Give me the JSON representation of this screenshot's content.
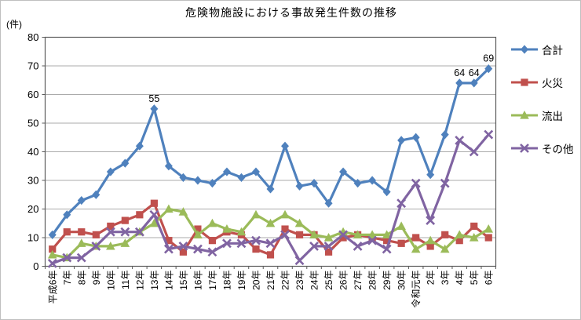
{
  "title": "危険物施設における事故発生件数の推移",
  "y_axis_unit": "(件)",
  "chart_data": {
    "type": "line",
    "title": "危険物施設における事故発生件数の推移",
    "ylabel_unit": "(件)",
    "ylim": [
      0,
      80
    ],
    "ytick_step": 10,
    "grid": true,
    "legend_position": "right",
    "categories": [
      "平成6年",
      "7年",
      "8年",
      "9年",
      "10年",
      "11年",
      "12年",
      "13年",
      "14年",
      "15年",
      "16年",
      "17年",
      "18年",
      "19年",
      "20年",
      "21年",
      "22年",
      "23年",
      "24年",
      "25年",
      "26年",
      "27年",
      "28年",
      "29年",
      "30年",
      "令和元年",
      "2年",
      "3年",
      "4年",
      "5年",
      "6年"
    ],
    "series": [
      {
        "name": "合計",
        "id": "total",
        "color": "#4F81BD",
        "marker": "diamond",
        "values": [
          11,
          18,
          23,
          25,
          33,
          36,
          42,
          55,
          35,
          31,
          30,
          29,
          33,
          31,
          33,
          27,
          42,
          28,
          29,
          22,
          33,
          29,
          30,
          26,
          44,
          45,
          32,
          46,
          64,
          64,
          69
        ]
      },
      {
        "name": "火災",
        "id": "fire",
        "color": "#C0504D",
        "marker": "square",
        "values": [
          6,
          12,
          12,
          11,
          14,
          16,
          18,
          22,
          9,
          5,
          13,
          9,
          12,
          11,
          6,
          4,
          13,
          11,
          11,
          5,
          10,
          11,
          10,
          9,
          8,
          10,
          7,
          11,
          9,
          14,
          10
        ]
      },
      {
        "name": "流出",
        "id": "leakage",
        "color": "#9BBB59",
        "marker": "triangle",
        "values": [
          4,
          3,
          8,
          7,
          7,
          8,
          12,
          15,
          20,
          19,
          11,
          15,
          13,
          12,
          18,
          15,
          18,
          15,
          11,
          10,
          12,
          11,
          11,
          11,
          14,
          6,
          9,
          6,
          11,
          10,
          13
        ]
      },
      {
        "name": "その他",
        "id": "other",
        "color": "#8064A2",
        "marker": "x",
        "values": [
          1,
          3,
          3,
          7,
          12,
          12,
          12,
          18,
          6,
          7,
          6,
          5,
          8,
          8,
          9,
          8,
          11,
          2,
          7,
          7,
          11,
          7,
          9,
          6,
          22,
          29,
          16,
          29,
          44,
          40,
          46
        ]
      }
    ],
    "annotations": [
      {
        "series": "合計",
        "category": "13年",
        "index": 7,
        "text": "55"
      },
      {
        "series": "合計",
        "category": "4年",
        "index": 28,
        "text": "64"
      },
      {
        "series": "合計",
        "category": "5年",
        "index": 29,
        "text": "64"
      },
      {
        "series": "合計",
        "category": "6年",
        "index": 30,
        "text": "69"
      }
    ],
    "colors": {
      "gridline": "#ABABAB",
      "axis_border": "#5B5B5B",
      "text": "#000000"
    }
  }
}
